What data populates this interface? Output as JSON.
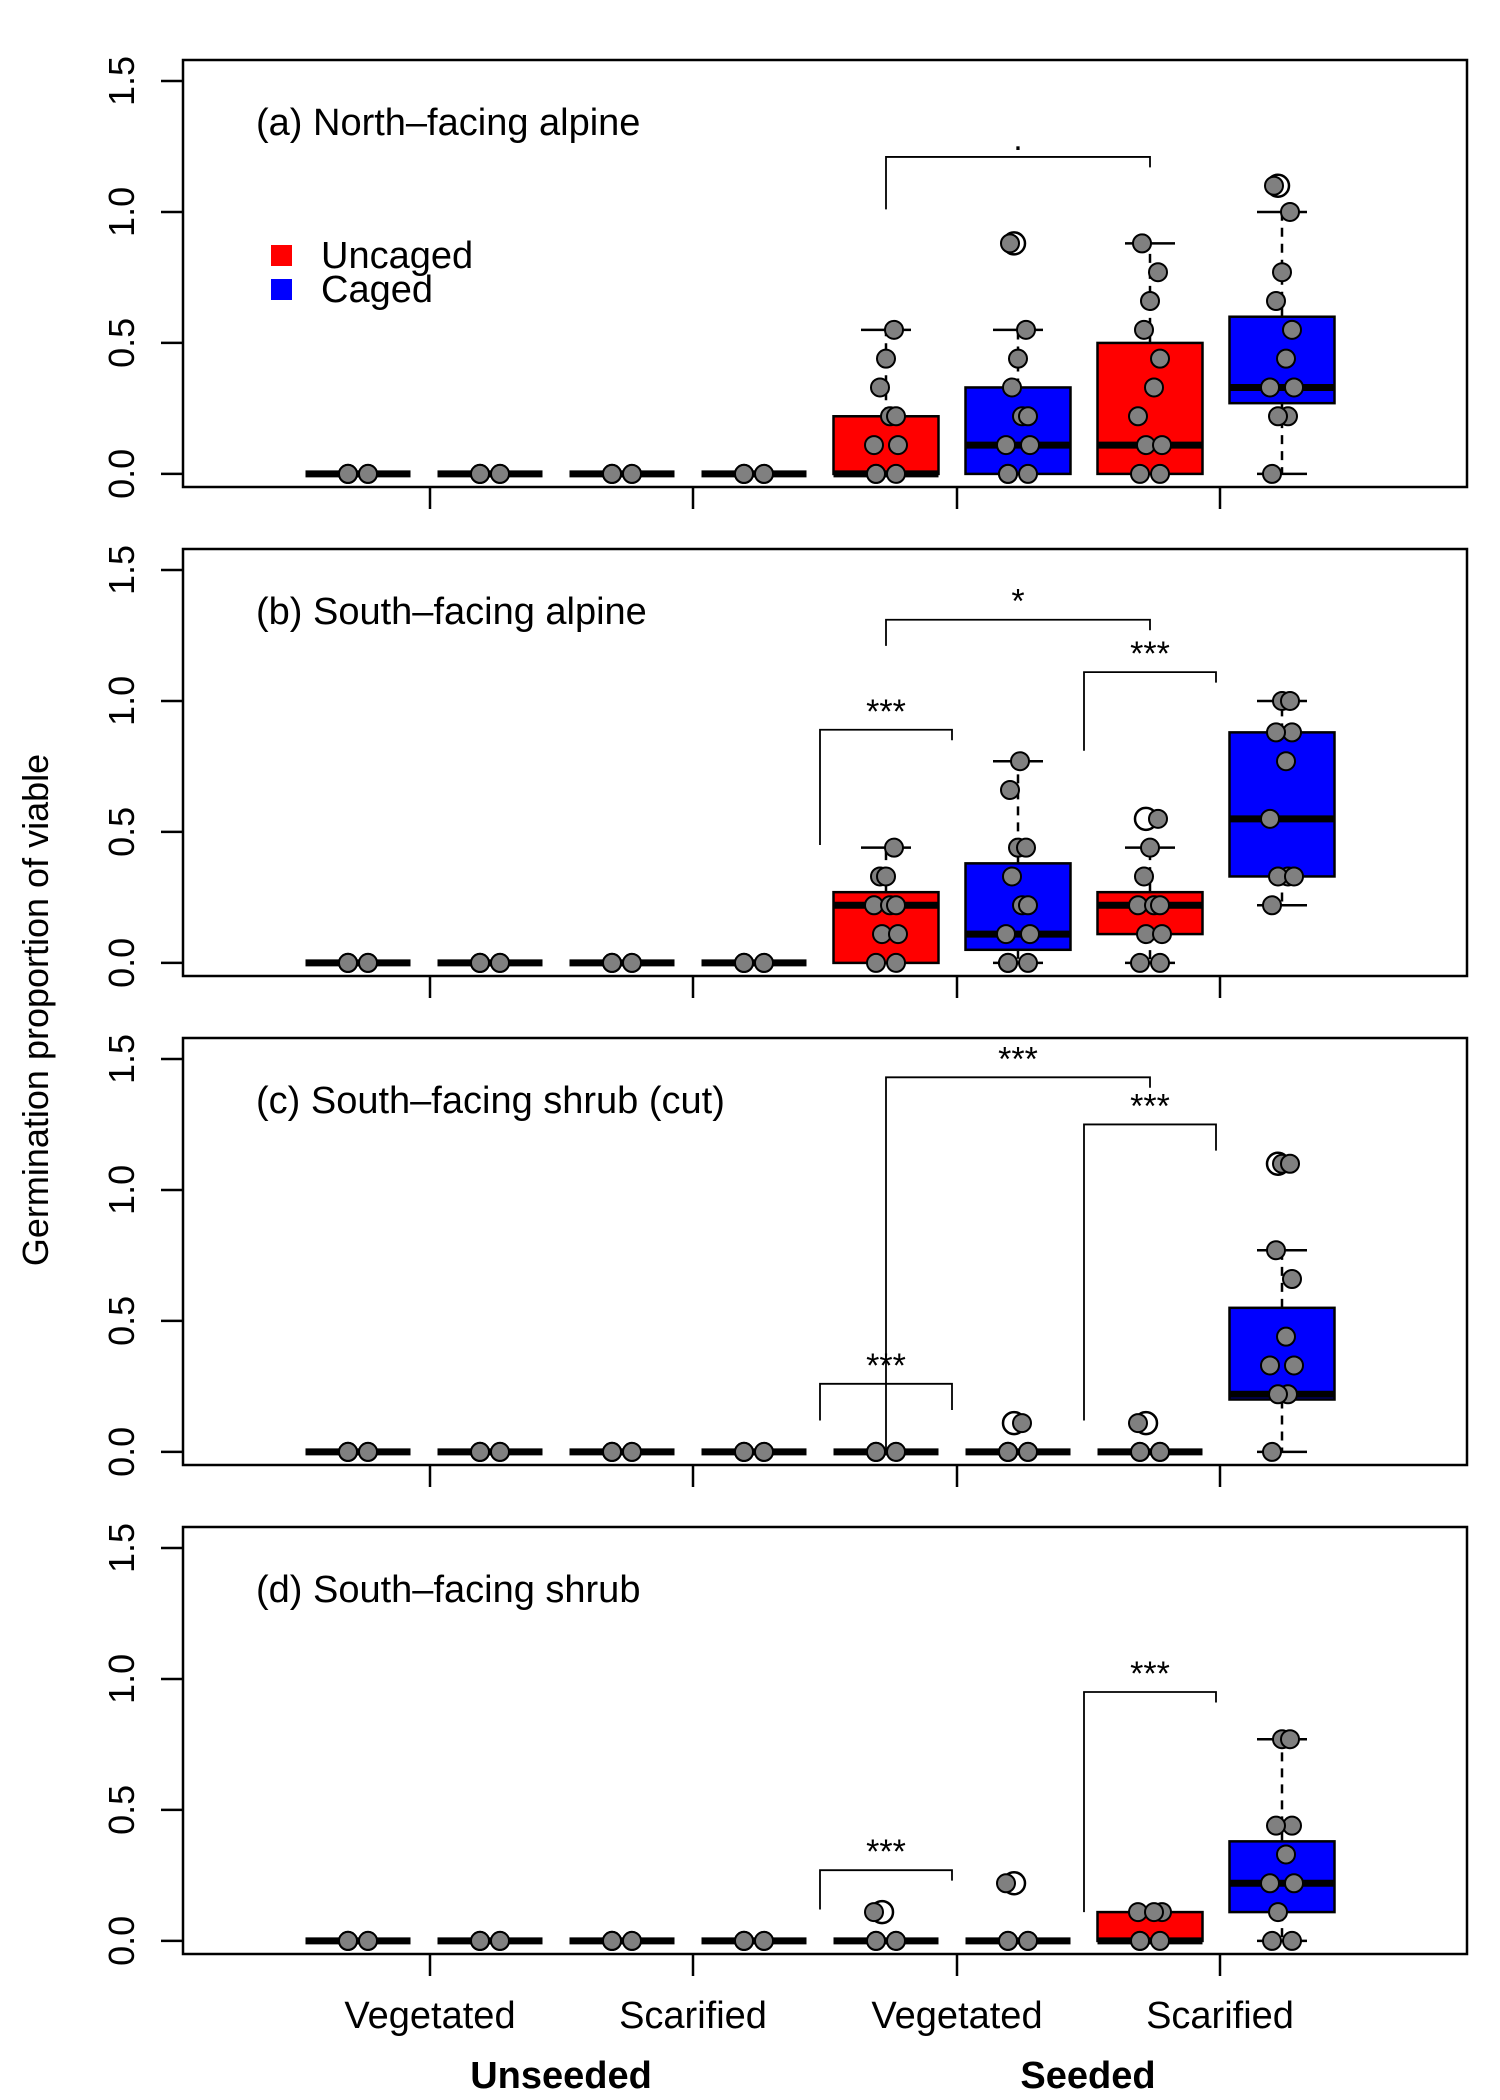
{
  "y_axis_label": "Germination proportion of viable",
  "legend": [
    {
      "label": "Uncaged",
      "color": "#ff0000"
    },
    {
      "label": "Caged",
      "color": "#0000ff"
    }
  ],
  "x_tick_labels": [
    "Vegetated",
    "Scarified",
    "Vegetated",
    "Scarified"
  ],
  "x_group_labels": [
    "Unseeded",
    "Seeded"
  ],
  "chart_data": [
    {
      "type": "box",
      "panel_label": "(a) North–facing alpine",
      "y_ticks": [
        "0.0",
        "0.5",
        "1.0",
        "1.5"
      ],
      "ylim": [
        -0.05,
        1.58
      ],
      "series": [
        {
          "name": "Uncaged",
          "color": "#ff0000",
          "boxes": [
            {
              "min": 0,
              "q1": 0,
              "median": 0,
              "q3": 0,
              "max": 0
            },
            {
              "min": 0,
              "q1": 0,
              "median": 0,
              "q3": 0,
              "max": 0
            },
            {
              "min": 0,
              "q1": 0,
              "median": 0.0,
              "q3": 0.22,
              "max": 0.55
            },
            {
              "min": 0,
              "q1": 0,
              "median": 0.11,
              "q3": 0.5,
              "max": 0.88
            }
          ]
        },
        {
          "name": "Caged",
          "color": "#0000ff",
          "boxes": [
            {
              "min": 0,
              "q1": 0,
              "median": 0,
              "q3": 0,
              "max": 0
            },
            {
              "min": 0,
              "q1": 0,
              "median": 0,
              "q3": 0,
              "max": 0
            },
            {
              "min": 0,
              "q1": 0,
              "median": 0.11,
              "q3": 0.33,
              "max": 0.55
            },
            {
              "min": 0,
              "q1": 0.27,
              "median": 0.33,
              "q3": 0.6,
              "max": 1.0
            }
          ]
        }
      ],
      "points": [
        [
          0,
          0,
          0,
          0,
          0
        ],
        [
          0,
          0,
          0,
          0,
          0
        ],
        [
          0,
          0,
          0,
          0,
          0
        ],
        [
          0,
          0,
          0,
          0,
          0
        ],
        [
          0,
          0,
          0,
          0.11,
          0.11,
          0.22,
          0.22,
          0.33,
          0.44,
          0.55
        ],
        [
          0,
          0,
          0,
          0.11,
          0.11,
          0.22,
          0.22,
          0.33,
          0.44,
          0.55,
          0.88
        ],
        [
          0,
          0,
          0.11,
          0.11,
          0.22,
          0.33,
          0.44,
          0.55,
          0.66,
          0.77,
          0.88
        ],
        [
          0,
          0.22,
          0.22,
          0.33,
          0.33,
          0.44,
          0.55,
          0.66,
          0.77,
          1.0,
          1.1
        ]
      ],
      "outliers": [
        null,
        null,
        null,
        null,
        null,
        [
          0.88
        ],
        null,
        [
          1.1
        ]
      ],
      "brackets": [
        {
          "from": 4,
          "to": 6,
          "y": 1.21,
          "left_drop": 0.2,
          "right_drop": 0.04,
          "label": "."
        }
      ]
    },
    {
      "type": "box",
      "panel_label": "(b) South–facing alpine",
      "y_ticks": [
        "0.0",
        "0.5",
        "1.0",
        "1.5"
      ],
      "ylim": [
        -0.05,
        1.58
      ],
      "series": [
        {
          "name": "Uncaged",
          "color": "#ff0000",
          "boxes": [
            {
              "min": 0,
              "q1": 0,
              "median": 0,
              "q3": 0,
              "max": 0
            },
            {
              "min": 0,
              "q1": 0,
              "median": 0,
              "q3": 0,
              "max": 0
            },
            {
              "min": 0,
              "q1": 0,
              "median": 0.22,
              "q3": 0.27,
              "max": 0.44
            },
            {
              "min": 0,
              "q1": 0.11,
              "median": 0.22,
              "q3": 0.27,
              "max": 0.44
            }
          ]
        },
        {
          "name": "Caged",
          "color": "#0000ff",
          "boxes": [
            {
              "min": 0,
              "q1": 0,
              "median": 0,
              "q3": 0,
              "max": 0
            },
            {
              "min": 0,
              "q1": 0,
              "median": 0,
              "q3": 0,
              "max": 0
            },
            {
              "min": 0,
              "q1": 0.05,
              "median": 0.11,
              "q3": 0.38,
              "max": 0.77
            },
            {
              "min": 0.22,
              "q1": 0.33,
              "median": 0.55,
              "q3": 0.88,
              "max": 1.0
            }
          ]
        }
      ],
      "points": [
        [
          0,
          0,
          0,
          0,
          0
        ],
        [
          0,
          0,
          0,
          0,
          0
        ],
        [
          0,
          0,
          0,
          0,
          0
        ],
        [
          0,
          0,
          0,
          0,
          0
        ],
        [
          0,
          0,
          0.11,
          0.11,
          0.22,
          0.22,
          0.22,
          0.33,
          0.33,
          0.44
        ],
        [
          0,
          0,
          0,
          0.11,
          0.11,
          0.22,
          0.22,
          0.33,
          0.44,
          0.44,
          0.66,
          0.77
        ],
        [
          0,
          0,
          0.11,
          0.11,
          0.22,
          0.22,
          0.22,
          0.33,
          0.44,
          0.55
        ],
        [
          0.22,
          0.33,
          0.33,
          0.33,
          0.55,
          0.77,
          0.88,
          0.88,
          1.0,
          1.0
        ]
      ],
      "outliers": [
        null,
        null,
        null,
        null,
        null,
        null,
        [
          0.55
        ],
        null
      ],
      "brackets": [
        {
          "from": 4,
          "to": 6,
          "y": 1.31,
          "left_drop": 0.1,
          "right_drop": 0.04,
          "label": "*"
        },
        {
          "from": 3.5,
          "to": 4.5,
          "y": 0.89,
          "left_drop": 0.44,
          "right_drop": 0.04,
          "label": "***"
        },
        {
          "from": 5.5,
          "to": 6.5,
          "y": 1.11,
          "left_drop": 0.3,
          "right_drop": 0.04,
          "label": "***"
        }
      ]
    },
    {
      "type": "box",
      "panel_label": "(c) South–facing shrub (cut)",
      "y_ticks": [
        "0.0",
        "0.5",
        "1.0",
        "1.5"
      ],
      "ylim": [
        -0.05,
        1.58
      ],
      "series": [
        {
          "name": "Uncaged",
          "color": "#ff0000",
          "boxes": [
            {
              "min": 0,
              "q1": 0,
              "median": 0,
              "q3": 0,
              "max": 0
            },
            {
              "min": 0,
              "q1": 0,
              "median": 0,
              "q3": 0,
              "max": 0
            },
            {
              "min": 0,
              "q1": 0,
              "median": 0,
              "q3": 0,
              "max": 0
            },
            {
              "min": 0,
              "q1": 0,
              "median": 0,
              "q3": 0,
              "max": 0
            }
          ]
        },
        {
          "name": "Caged",
          "color": "#0000ff",
          "boxes": [
            {
              "min": 0,
              "q1": 0,
              "median": 0,
              "q3": 0,
              "max": 0
            },
            {
              "min": 0,
              "q1": 0,
              "median": 0,
              "q3": 0,
              "max": 0
            },
            {
              "min": 0,
              "q1": 0,
              "median": 0,
              "q3": 0,
              "max": 0
            },
            {
              "min": 0,
              "q1": 0.2,
              "median": 0.22,
              "q3": 0.55,
              "max": 0.77
            }
          ]
        }
      ],
      "points": [
        [
          0,
          0,
          0,
          0,
          0
        ],
        [
          0,
          0,
          0,
          0,
          0
        ],
        [
          0,
          0,
          0,
          0,
          0
        ],
        [
          0,
          0,
          0,
          0,
          0
        ],
        [
          0,
          0,
          0,
          0,
          0
        ],
        [
          0,
          0,
          0,
          0,
          0,
          0.11
        ],
        [
          0,
          0,
          0,
          0,
          0.11
        ],
        [
          0,
          0.22,
          0.22,
          0.33,
          0.33,
          0.44,
          0.66,
          0.77,
          1.1,
          1.1
        ]
      ],
      "outliers": [
        null,
        null,
        null,
        null,
        null,
        [
          0.11
        ],
        [
          0.11
        ],
        [
          1.1
        ]
      ],
      "brackets": [
        {
          "from": 4,
          "to": 6,
          "y": 1.43,
          "left_drop": 1.43,
          "right_drop": 0.04,
          "label": "***"
        },
        {
          "from": 5.5,
          "to": 6.5,
          "y": 1.25,
          "left_drop": 1.13,
          "right_drop": 0.1,
          "label": "***"
        },
        {
          "from": 3.5,
          "to": 4.5,
          "y": 0.26,
          "left_drop": 0.14,
          "right_drop": 0.1,
          "label": "***"
        }
      ]
    },
    {
      "type": "box",
      "panel_label": "(d) South–facing shrub",
      "y_ticks": [
        "0.0",
        "0.5",
        "1.0",
        "1.5"
      ],
      "ylim": [
        -0.05,
        1.58
      ],
      "series": [
        {
          "name": "Uncaged",
          "color": "#ff0000",
          "boxes": [
            {
              "min": 0,
              "q1": 0,
              "median": 0,
              "q3": 0,
              "max": 0
            },
            {
              "min": 0,
              "q1": 0,
              "median": 0,
              "q3": 0,
              "max": 0
            },
            {
              "min": 0,
              "q1": 0,
              "median": 0,
              "q3": 0,
              "max": 0
            },
            {
              "min": 0,
              "q1": 0,
              "median": 0.0,
              "q3": 0.11,
              "max": 0.11
            }
          ]
        },
        {
          "name": "Caged",
          "color": "#0000ff",
          "boxes": [
            {
              "min": 0,
              "q1": 0,
              "median": 0,
              "q3": 0,
              "max": 0
            },
            {
              "min": 0,
              "q1": 0,
              "median": 0,
              "q3": 0,
              "max": 0
            },
            {
              "min": 0,
              "q1": 0,
              "median": 0,
              "q3": 0,
              "max": 0
            },
            {
              "min": 0,
              "q1": 0.11,
              "median": 0.22,
              "q3": 0.38,
              "max": 0.77
            }
          ]
        }
      ],
      "points": [
        [
          0,
          0,
          0,
          0,
          0
        ],
        [
          0,
          0,
          0,
          0,
          0
        ],
        [
          0,
          0,
          0,
          0,
          0
        ],
        [
          0,
          0,
          0,
          0,
          0
        ],
        [
          0,
          0,
          0,
          0,
          0.11
        ],
        [
          0,
          0,
          0,
          0,
          0.22
        ],
        [
          0,
          0,
          0,
          0.11,
          0.11,
          0.11
        ],
        [
          0,
          0,
          0.11,
          0.22,
          0.22,
          0.33,
          0.44,
          0.44,
          0.77,
          0.77
        ]
      ],
      "outliers": [
        null,
        null,
        null,
        null,
        [
          0.11
        ],
        [
          0.22
        ],
        null,
        null
      ],
      "brackets": [
        {
          "from": 3.5,
          "to": 4.5,
          "y": 0.27,
          "left_drop": 0.15,
          "right_drop": 0.04,
          "label": "***"
        },
        {
          "from": 5.5,
          "to": 6.5,
          "y": 0.95,
          "left_drop": 0.84,
          "right_drop": 0.04,
          "label": "***"
        }
      ]
    }
  ]
}
